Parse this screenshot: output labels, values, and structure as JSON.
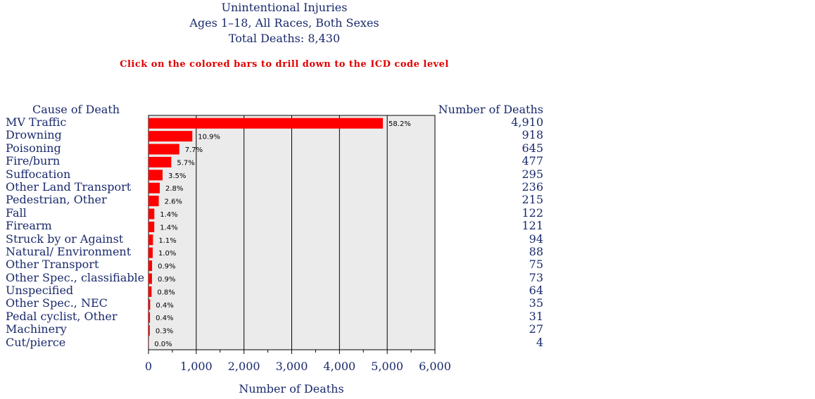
{
  "header": {
    "title": "Unintentional Injuries",
    "subtitle": "Ages 1–18, All Races, Both Sexes",
    "total": "Total Deaths: 8,430",
    "instruction": "Click on the colored bars to drill down to the ICD code level"
  },
  "table": {
    "cause_header": "Cause of Death",
    "count_header": "Number of Deaths"
  },
  "colors": {
    "bar": "#ff0000",
    "plot_bg": "#ebebeb",
    "text": "#1a2a6c"
  },
  "chart_data": {
    "type": "bar",
    "orientation": "horizontal",
    "categories": [
      "MV Traffic",
      "Drowning",
      "Poisoning",
      "Fire/burn",
      "Suffocation",
      "Other Land Transport",
      "Pedestrian, Other",
      "Fall",
      "Firearm",
      "Struck by or Against",
      "Natural/ Environment",
      "Other Transport",
      "Other Spec., classifiable",
      "Unspecified",
      "Other Spec., NEC",
      "Pedal cyclist, Other",
      "Machinery",
      "Cut/pierce"
    ],
    "values": [
      4910,
      918,
      645,
      477,
      295,
      236,
      215,
      122,
      121,
      94,
      88,
      75,
      73,
      64,
      35,
      31,
      27,
      4
    ],
    "value_labels": [
      "4,910",
      "918",
      "645",
      "477",
      "295",
      "236",
      "215",
      "122",
      "121",
      "94",
      "88",
      "75",
      "73",
      "64",
      "35",
      "31",
      "27",
      "4"
    ],
    "percent_labels": [
      "58.2%",
      "10.9%",
      "7.7%",
      "5.7%",
      "3.5%",
      "2.8%",
      "2.6%",
      "1.4%",
      "1.4%",
      "1.1%",
      "1.0%",
      "0.9%",
      "0.9%",
      "0.8%",
      "0.4%",
      "0.4%",
      "0.3%",
      "0.0%"
    ],
    "xlabel": "Number of Deaths",
    "xlim": [
      0,
      6000
    ],
    "xticks": [
      0,
      1000,
      2000,
      3000,
      4000,
      5000,
      6000
    ],
    "xtick_labels": [
      "0",
      "1,000",
      "2,000",
      "3,000",
      "4,000",
      "5,000",
      "6,000"
    ],
    "grid": true
  }
}
